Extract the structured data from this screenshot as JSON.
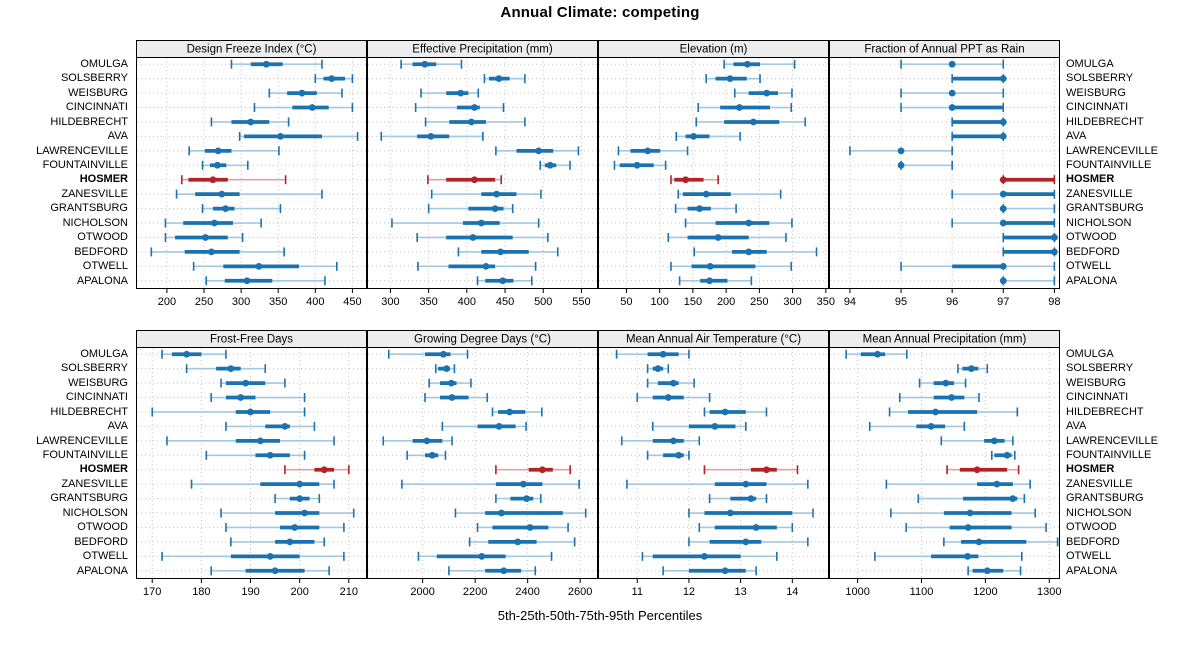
{
  "title": "Annual Climate: competing",
  "footer": "5th-25th-50th-75th-95th Percentiles",
  "highlight_site": "HOSMER",
  "colors": {
    "series": "#1b72b0",
    "series_light": "#a4c8e1",
    "highlight": "#b22226",
    "highlight_light": "#e0a2a4",
    "strip_bg": "#ededed",
    "grid": "#c3c3c3",
    "border": "#000000"
  },
  "sites": [
    "OMULGA",
    "SOLSBERRY",
    "WEISBURG",
    "CINCINNATI",
    "HILDEBRECHT",
    "AVA",
    "LAWRENCEVILLE",
    "FOUNTAINVILLE",
    "HOSMER",
    "ZANESVILLE",
    "GRANTSBURG",
    "NICHOLSON",
    "OTWOOD",
    "BEDFORD",
    "OTWELL",
    "APALONA"
  ],
  "chart_data": {
    "type": "percentile-dotplot-trellis",
    "percentiles": [
      5,
      25,
      50,
      75,
      95
    ],
    "layout": [
      4,
      2
    ],
    "grid": "dashed",
    "panels": [
      {
        "title": "Design Freeze Index (°C)",
        "xlim": [
          159,
          469
        ],
        "ticks": [
          200,
          250,
          300,
          350,
          400,
          450
        ],
        "values": [
          [
            287,
            313,
            334,
            356,
            409
          ],
          [
            400,
            411,
            422,
            440,
            450
          ],
          [
            338,
            362,
            382,
            402,
            436
          ],
          [
            318,
            369,
            396,
            418,
            450
          ],
          [
            260,
            287,
            313,
            338,
            364
          ],
          [
            298,
            304,
            353,
            409,
            457
          ],
          [
            230,
            251,
            269,
            287,
            351
          ],
          [
            248,
            258,
            268,
            280,
            309
          ],
          [
            220,
            229,
            262,
            282,
            360
          ],
          [
            213,
            238,
            274,
            298,
            409
          ],
          [
            248,
            262,
            279,
            291,
            353
          ],
          [
            198,
            222,
            264,
            289,
            327
          ],
          [
            198,
            211,
            252,
            282,
            302
          ],
          [
            179,
            224,
            260,
            298,
            358
          ],
          [
            236,
            276,
            324,
            378,
            429
          ],
          [
            253,
            278,
            308,
            342,
            413
          ]
        ]
      },
      {
        "title": "Effective Precipitation (mm)",
        "xlim": [
          270,
          571
        ],
        "ticks": [
          300,
          350,
          400,
          450,
          500,
          550
        ],
        "values": [
          [
            314,
            329,
            345,
            360,
            393
          ],
          [
            423,
            429,
            442,
            456,
            476
          ],
          [
            340,
            373,
            392,
            402,
            415
          ],
          [
            333,
            387,
            410,
            417,
            448
          ],
          [
            346,
            377,
            406,
            425,
            476
          ],
          [
            288,
            335,
            353,
            377,
            421
          ],
          [
            438,
            465,
            494,
            513,
            546
          ],
          [
            496,
            502,
            509,
            517,
            535
          ],
          [
            349,
            373,
            410,
            437,
            445
          ],
          [
            354,
            419,
            439,
            465,
            497
          ],
          [
            350,
            402,
            437,
            448,
            460
          ],
          [
            302,
            395,
            419,
            443,
            494
          ],
          [
            335,
            373,
            408,
            460,
            506
          ],
          [
            389,
            419,
            444,
            481,
            519
          ],
          [
            336,
            376,
            425,
            437,
            490
          ],
          [
            414,
            424,
            447,
            461,
            485
          ]
        ]
      },
      {
        "title": "Elevation (m)",
        "xlim": [
          8,
          354
        ],
        "ticks": [
          50,
          100,
          150,
          200,
          250,
          300,
          350
        ],
        "values": [
          [
            197,
            211,
            232,
            251,
            303
          ],
          [
            170,
            184,
            206,
            231,
            251
          ],
          [
            213,
            234,
            261,
            278,
            299
          ],
          [
            158,
            191,
            220,
            266,
            298
          ],
          [
            155,
            197,
            241,
            280,
            319
          ],
          [
            125,
            139,
            151,
            175,
            221
          ],
          [
            38,
            56,
            82,
            101,
            142
          ],
          [
            32,
            40,
            66,
            91,
            109
          ],
          [
            117,
            122,
            139,
            166,
            188
          ],
          [
            128,
            135,
            170,
            207,
            282
          ],
          [
            124,
            142,
            160,
            177,
            215
          ],
          [
            139,
            184,
            234,
            265,
            299
          ],
          [
            113,
            142,
            188,
            234,
            290
          ],
          [
            152,
            209,
            234,
            261,
            336
          ],
          [
            117,
            148,
            176,
            244,
            298
          ],
          [
            130,
            161,
            175,
            202,
            238
          ]
        ]
      },
      {
        "title": "Fraction of Annual PPT as Rain",
        "xlim": [
          93.6,
          98.1
        ],
        "ticks": [
          94,
          95,
          96,
          97,
          98
        ],
        "values": [
          [
            95,
            96,
            96,
            96,
            97
          ],
          [
            96,
            96,
            97,
            97,
            97
          ],
          [
            95,
            96,
            96,
            96,
            97
          ],
          [
            95,
            96,
            96,
            97,
            97
          ],
          [
            96,
            96,
            97,
            97,
            97
          ],
          [
            96,
            96,
            97,
            97,
            97
          ],
          [
            94,
            95,
            95,
            95,
            96
          ],
          [
            95,
            95,
            95,
            95,
            96
          ],
          [
            97,
            97,
            97,
            98,
            98
          ],
          [
            96,
            97,
            97,
            98,
            98
          ],
          [
            97,
            97,
            97,
            97,
            98
          ],
          [
            96,
            97,
            97,
            98,
            98
          ],
          [
            97,
            97,
            98,
            98,
            98
          ],
          [
            97,
            97,
            98,
            98,
            98
          ],
          [
            95,
            96,
            97,
            97,
            98
          ],
          [
            97,
            97,
            97,
            97,
            98
          ]
        ]
      },
      {
        "title": "Frost-Free Days",
        "xlim": [
          166.8,
          213.6
        ],
        "ticks": [
          170,
          180,
          190,
          200,
          210
        ],
        "values": [
          [
            172,
            174,
            177,
            180,
            185
          ],
          [
            177,
            183,
            186,
            188,
            193
          ],
          [
            184,
            185,
            189,
            193,
            197
          ],
          [
            182,
            185,
            188,
            191,
            201
          ],
          [
            170,
            187,
            190,
            194,
            201
          ],
          [
            185,
            193,
            197,
            198,
            203
          ],
          [
            173,
            187,
            192,
            196,
            207
          ],
          [
            181,
            191,
            194,
            198,
            201
          ],
          [
            197,
            203,
            205,
            207,
            210
          ],
          [
            178,
            192,
            200,
            204,
            207
          ],
          [
            195,
            198,
            200,
            202,
            204
          ],
          [
            184,
            195,
            201,
            204,
            211
          ],
          [
            185,
            196,
            199,
            204,
            209
          ],
          [
            186,
            195,
            198,
            203,
            205
          ],
          [
            172,
            186,
            194,
            200,
            209
          ],
          [
            182,
            189,
            195,
            201,
            206
          ]
        ]
      },
      {
        "title": "Growing Degree Days (°C)",
        "xlim": [
          1790,
          2666
        ],
        "ticks": [
          2000,
          2200,
          2400,
          2600
        ],
        "values": [
          [
            1871,
            2009,
            2079,
            2106,
            2171
          ],
          [
            2050,
            2059,
            2091,
            2104,
            2121
          ],
          [
            2025,
            2066,
            2109,
            2129,
            2184
          ],
          [
            2009,
            2066,
            2112,
            2175,
            2246
          ],
          [
            2266,
            2287,
            2331,
            2391,
            2454
          ],
          [
            2075,
            2209,
            2291,
            2354,
            2394
          ],
          [
            1850,
            1962,
            2016,
            2075,
            2112
          ],
          [
            1941,
            2009,
            2037,
            2059,
            2087
          ],
          [
            2279,
            2404,
            2456,
            2496,
            2562
          ],
          [
            1921,
            2279,
            2384,
            2456,
            2596
          ],
          [
            2279,
            2334,
            2396,
            2421,
            2450
          ],
          [
            2125,
            2238,
            2300,
            2534,
            2621
          ],
          [
            2209,
            2266,
            2409,
            2479,
            2554
          ],
          [
            2179,
            2250,
            2362,
            2434,
            2579
          ],
          [
            1984,
            2054,
            2225,
            2316,
            2491
          ],
          [
            2100,
            2238,
            2309,
            2375,
            2429
          ]
        ]
      },
      {
        "title": "Mean Annual Air Temperature (°C)",
        "xlim": [
          10.25,
          14.7
        ],
        "ticks": [
          11,
          12,
          13,
          14
        ],
        "values": [
          [
            10.6,
            11.2,
            11.5,
            11.8,
            12.0
          ],
          [
            11.2,
            11.3,
            11.4,
            11.5,
            11.6
          ],
          [
            11.2,
            11.4,
            11.7,
            11.8,
            12.1
          ],
          [
            11.0,
            11.3,
            11.6,
            11.9,
            12.4
          ],
          [
            12.3,
            12.4,
            12.7,
            13.1,
            13.5
          ],
          [
            11.3,
            12.0,
            12.5,
            12.9,
            13.1
          ],
          [
            10.7,
            11.3,
            11.7,
            11.9,
            12.2
          ],
          [
            11.2,
            11.5,
            11.8,
            11.9,
            12.0
          ],
          [
            12.3,
            13.2,
            13.5,
            13.7,
            14.1
          ],
          [
            10.8,
            12.5,
            13.1,
            13.5,
            14.3
          ],
          [
            12.4,
            12.8,
            13.2,
            13.3,
            13.5
          ],
          [
            12.0,
            12.3,
            12.8,
            14.0,
            14.4
          ],
          [
            12.2,
            12.5,
            13.3,
            13.7,
            14.0
          ],
          [
            12.0,
            12.4,
            13.1,
            13.4,
            14.3
          ],
          [
            11.1,
            11.3,
            12.3,
            13.0,
            13.7
          ],
          [
            11.5,
            12.0,
            12.7,
            13.1,
            13.3
          ]
        ]
      },
      {
        "title": "Mean Annual Precipitation (mm)",
        "xlim": [
          956,
          1316
        ],
        "ticks": [
          1000,
          1100,
          1200,
          1300
        ],
        "values": [
          [
            982,
            1005,
            1031,
            1043,
            1077
          ],
          [
            1157,
            1164,
            1178,
            1189,
            1203
          ],
          [
            1097,
            1119,
            1138,
            1151,
            1169
          ],
          [
            1066,
            1119,
            1147,
            1167,
            1190
          ],
          [
            1050,
            1079,
            1122,
            1187,
            1250
          ],
          [
            1019,
            1092,
            1115,
            1137,
            1167
          ],
          [
            1131,
            1198,
            1214,
            1230,
            1243
          ],
          [
            1210,
            1214,
            1234,
            1241,
            1246
          ],
          [
            1140,
            1160,
            1187,
            1234,
            1252
          ],
          [
            1045,
            1187,
            1218,
            1243,
            1270
          ],
          [
            1095,
            1165,
            1243,
            1250,
            1261
          ],
          [
            1052,
            1135,
            1176,
            1241,
            1278
          ],
          [
            1076,
            1144,
            1173,
            1241,
            1295
          ],
          [
            1135,
            1162,
            1190,
            1264,
            1313
          ],
          [
            1027,
            1115,
            1172,
            1189,
            1257
          ],
          [
            1173,
            1180,
            1203,
            1228,
            1255
          ]
        ]
      }
    ]
  }
}
